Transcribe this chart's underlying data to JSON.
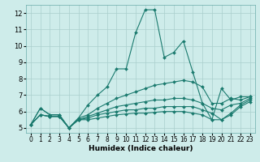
{
  "xlabel": "Humidex (Indice chaleur)",
  "x": [
    0,
    1,
    2,
    3,
    4,
    5,
    6,
    7,
    8,
    9,
    10,
    11,
    12,
    13,
    14,
    15,
    16,
    17,
    18,
    19,
    20,
    21,
    22,
    23
  ],
  "series": [
    [
      5.2,
      6.2,
      5.8,
      5.8,
      5.0,
      5.6,
      6.4,
      7.0,
      7.5,
      8.6,
      8.6,
      10.8,
      12.2,
      12.2,
      9.3,
      9.6,
      10.3,
      8.4,
      6.5,
      5.5,
      7.4,
      6.7,
      6.9,
      6.9
    ],
    [
      5.2,
      6.2,
      5.8,
      5.8,
      5.0,
      5.6,
      5.8,
      6.2,
      6.5,
      6.8,
      7.0,
      7.2,
      7.4,
      7.6,
      7.7,
      7.8,
      7.9,
      7.8,
      7.5,
      6.5,
      6.5,
      6.8,
      6.7,
      6.9
    ],
    [
      5.2,
      5.8,
      5.7,
      5.7,
      5.0,
      5.5,
      5.7,
      5.9,
      6.1,
      6.3,
      6.4,
      6.5,
      6.6,
      6.7,
      6.7,
      6.8,
      6.8,
      6.7,
      6.5,
      6.2,
      6.1,
      6.4,
      6.5,
      6.8
    ],
    [
      5.2,
      5.8,
      5.7,
      5.7,
      5.0,
      5.5,
      5.6,
      5.8,
      5.9,
      6.0,
      6.1,
      6.1,
      6.2,
      6.2,
      6.3,
      6.3,
      6.3,
      6.3,
      6.1,
      5.9,
      5.5,
      5.9,
      6.4,
      6.7
    ],
    [
      5.2,
      5.8,
      5.7,
      5.7,
      5.0,
      5.5,
      5.5,
      5.6,
      5.7,
      5.8,
      5.85,
      5.9,
      5.9,
      5.95,
      6.0,
      6.0,
      6.0,
      5.9,
      5.8,
      5.5,
      5.5,
      5.8,
      6.3,
      6.6
    ]
  ],
  "line_color": "#1a7a6e",
  "marker": "D",
  "marker_size": 2.0,
  "ylim": [
    4.7,
    12.5
  ],
  "xlim": [
    -0.5,
    23.5
  ],
  "yticks": [
    5,
    6,
    7,
    8,
    9,
    10,
    11,
    12
  ],
  "xticks": [
    0,
    1,
    2,
    3,
    4,
    5,
    6,
    7,
    8,
    9,
    10,
    11,
    12,
    13,
    14,
    15,
    16,
    17,
    18,
    19,
    20,
    21,
    22,
    23
  ],
  "bg_color": "#ceecea",
  "grid_color": "#aacfcc",
  "linewidth": 0.8,
  "tick_fontsize": 5.5,
  "xlabel_fontsize": 6.5
}
